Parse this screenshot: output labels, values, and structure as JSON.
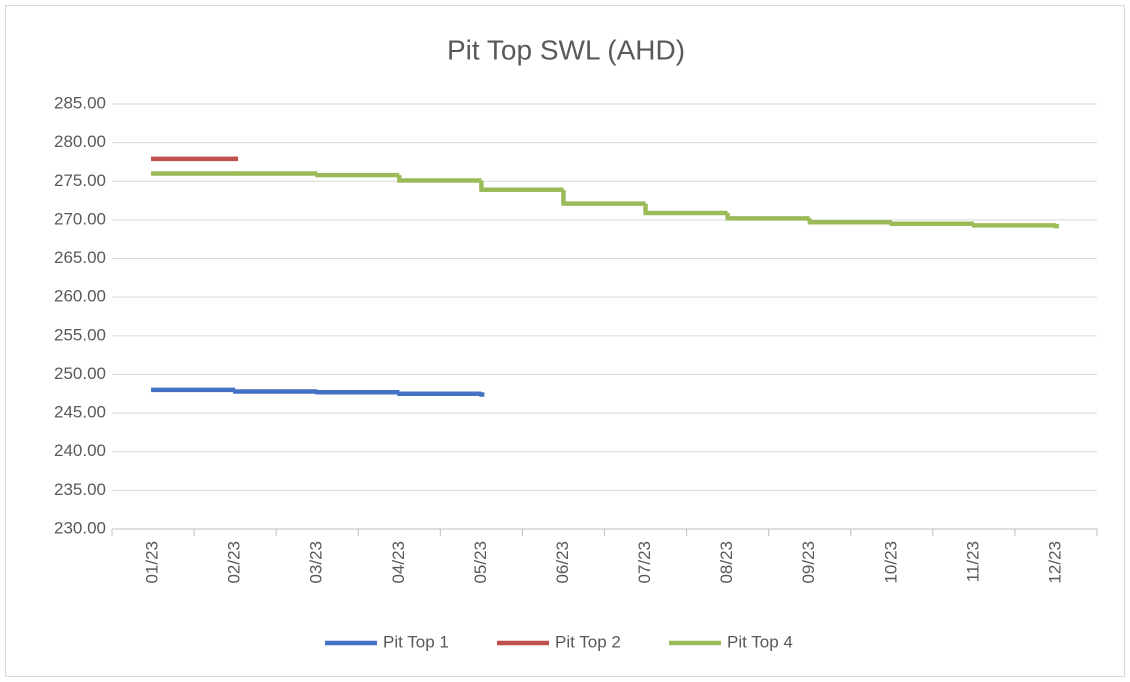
{
  "chart_data": {
    "type": "step",
    "title": "Pit Top SWL (AHD)",
    "categories": [
      "01/23",
      "02/23",
      "03/23",
      "04/23",
      "05/23",
      "06/23",
      "07/23",
      "08/23",
      "09/23",
      "10/23",
      "11/23",
      "12/23"
    ],
    "series": [
      {
        "name": "Pit Top 1",
        "color": "#4472c4",
        "values": [
          248.0,
          247.8,
          247.7,
          247.5,
          247.4,
          null,
          null,
          null,
          null,
          null,
          null,
          null
        ]
      },
      {
        "name": "Pit Top 2",
        "color": "#c0504d",
        "values": [
          277.9,
          277.9,
          null,
          null,
          null,
          null,
          null,
          null,
          null,
          null,
          null,
          null
        ]
      },
      {
        "name": "Pit Top 4",
        "color": "#9bbb59",
        "values": [
          276.0,
          276.0,
          275.8,
          275.1,
          273.9,
          272.1,
          270.9,
          270.2,
          269.7,
          269.5,
          269.3,
          269.2
        ]
      }
    ],
    "ylim": [
      230,
      285
    ],
    "yticks": [
      {
        "value": 230,
        "label": "230.00"
      },
      {
        "value": 235,
        "label": "235.00"
      },
      {
        "value": 240,
        "label": "240.00"
      },
      {
        "value": 245,
        "label": "245.00"
      },
      {
        "value": 250,
        "label": "250.00"
      },
      {
        "value": 255,
        "label": "255.00"
      },
      {
        "value": 260,
        "label": "260.00"
      },
      {
        "value": 265,
        "label": "265.00"
      },
      {
        "value": 270,
        "label": "270.00"
      },
      {
        "value": 275,
        "label": "275.00"
      },
      {
        "value": 280,
        "label": "280.00"
      },
      {
        "value": 285,
        "label": "285.00"
      }
    ],
    "grid": true,
    "legend": "bottom"
  }
}
